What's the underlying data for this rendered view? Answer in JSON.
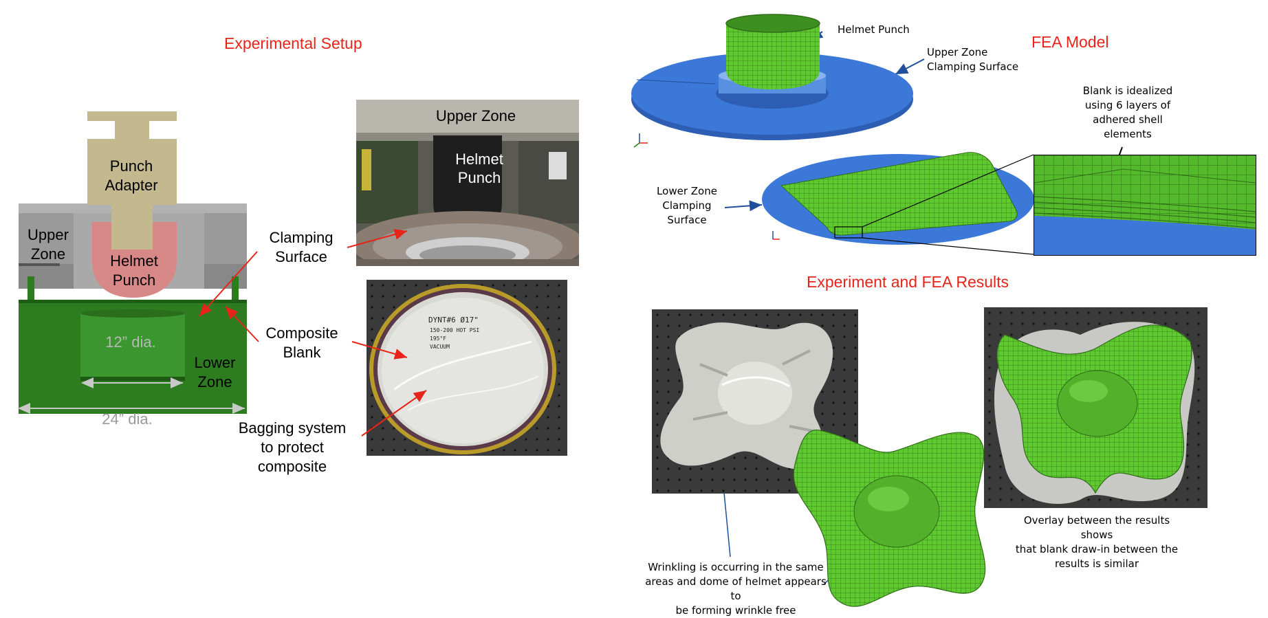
{
  "sections": {
    "experimental_setup": "Experimental Setup",
    "fea_model": "FEA Model",
    "experiment_fea_results": "Experiment and FEA Results"
  },
  "cad": {
    "punch_adapter": [
      "Punch",
      "Adapter"
    ],
    "upper_zone": [
      "Upper",
      "Zone"
    ],
    "helmet_punch": [
      "Helmet",
      "Punch"
    ],
    "lower_zone": [
      "Lower",
      "Zone"
    ],
    "inner_dia": "12” dia.",
    "outer_dia": "24” dia."
  },
  "callouts": {
    "clamping_surface": [
      "Clamping",
      "Surface"
    ],
    "composite_blank": [
      "Composite",
      "Blank"
    ],
    "bagging_system": [
      "Bagging system",
      "to protect",
      "composite"
    ]
  },
  "photo_labels": {
    "upper_zone": "Upper Zone",
    "helmet_punch": [
      "Helmet",
      "Punch"
    ],
    "blank_writing": [
      "DYNT#6   Ø17\"",
      "150-200 HOT PSI",
      "195°F",
      "VACUUM"
    ]
  },
  "fea": {
    "helmet_punch": "Helmet Punch",
    "upper_zone_clamping": [
      "Upper Zone",
      "Clamping Surface"
    ],
    "lower_zone_clamping": [
      "Lower Zone",
      "Clamping",
      "Surface"
    ],
    "blank_idealized": [
      "Blank is idealized",
      "using 6 layers of",
      "adhered shell",
      "elements"
    ]
  },
  "results": {
    "wrinkling_note": [
      "Wrinkling is occurring in the same",
      "areas and dome of helmet appears to",
      "be forming wrinkle free"
    ],
    "overlay_note": [
      "Overlay between the results shows",
      "that blank draw-in between the",
      "results is similar"
    ]
  },
  "colors": {
    "title_red": "#e8241a",
    "cad_green": "#2d7d20",
    "cad_gray": "#9a9a9a",
    "adapter_tan": "#c3b88e",
    "punch_pink": "#d98888",
    "fea_blue": "#3b78d8",
    "mesh_green": "#5fc930",
    "arrow_red": "#e8241a",
    "arrow_blue": "#1f4e9a"
  }
}
